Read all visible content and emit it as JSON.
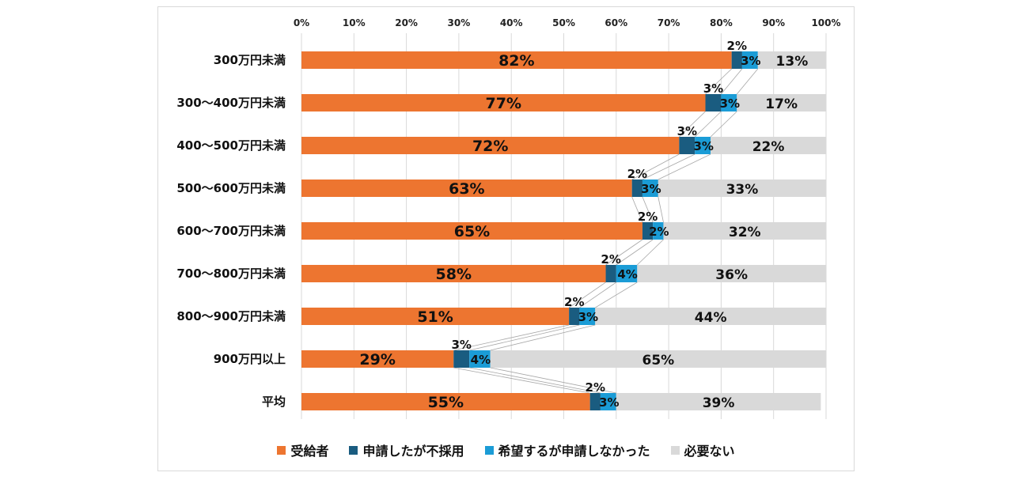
{
  "chart_data": {
    "type": "bar",
    "orientation": "horizontal",
    "stacked": true,
    "percent_stacked": true,
    "categories": [
      "300万円未満",
      "300～400万円未満",
      "400～500万円未満",
      "500～600万円未満",
      "600～700万円未満",
      "700～800万円未満",
      "800～900万円未満",
      "900万円以上",
      "平均"
    ],
    "series": [
      {
        "name": "受給者",
        "color": "#ed7530",
        "values": [
          82,
          77,
          72,
          63,
          65,
          58,
          51,
          29,
          55
        ]
      },
      {
        "name": "申請したが不採用",
        "color": "#1a5c80",
        "values": [
          2,
          3,
          3,
          2,
          2,
          2,
          2,
          3,
          2
        ]
      },
      {
        "name": "希望するが申請しなかった",
        "color": "#1b9cd6",
        "values": [
          3,
          3,
          3,
          3,
          2,
          4,
          3,
          4,
          3
        ]
      },
      {
        "name": "必要ない",
        "color": "#d9d9d9",
        "values": [
          13,
          17,
          22,
          33,
          32,
          36,
          44,
          65,
          39
        ]
      }
    ],
    "xlim": [
      0,
      100
    ],
    "x_ticks": [
      "0%",
      "10%",
      "20%",
      "30%",
      "40%",
      "50%",
      "60%",
      "70%",
      "80%",
      "90%",
      "100%"
    ],
    "value_suffix": "%",
    "grid": true,
    "series_lines": true,
    "legend_position": "bottom"
  }
}
